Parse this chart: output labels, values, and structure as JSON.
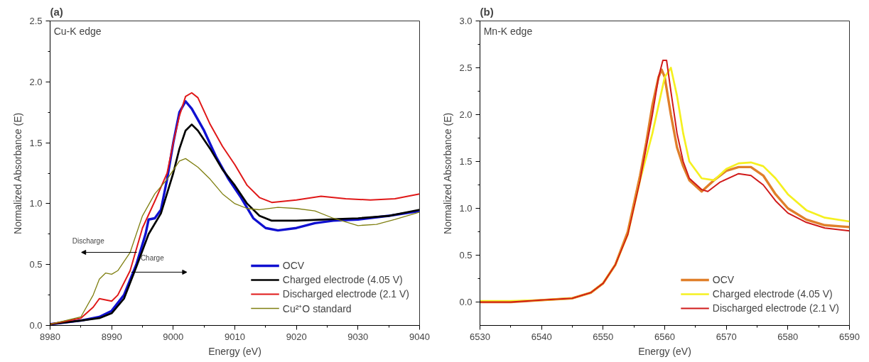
{
  "chart_data": [
    {
      "type": "line",
      "title": "(a)",
      "xlabel": "Energy (eV)",
      "ylabel": "Normalized Absorbance (E)",
      "annotations": [
        "Cu-K edge",
        "Discharge",
        "Charge"
      ],
      "xlim": [
        8980,
        9040
      ],
      "xticks": [
        8980,
        8990,
        9000,
        9010,
        9020,
        9030,
        9040
      ],
      "ylim": [
        0,
        2.5
      ],
      "yticks": [
        {
          "value": 0,
          "label": "0.0"
        },
        0.5,
        {
          "value": 1,
          "label": "1.0"
        },
        1.5,
        {
          "value": 2,
          "label": "2.0"
        },
        2.5
      ],
      "grid": false,
      "legend": "bottom right",
      "line_style": "solid",
      "marker": "none",
      "series": [
        {
          "name": "OCV",
          "color": "#1010d0",
          "x": [
            8980,
            8985,
            8988,
            8990,
            8992,
            8994,
            8995.5,
            8996,
            8997,
            8998,
            8999,
            9000,
            9001,
            9002,
            9003,
            9005,
            9007,
            9009,
            9011,
            9013,
            9015,
            9017,
            9020,
            9023,
            9026,
            9030,
            9035,
            9040
          ],
          "values": [
            0.01,
            0.04,
            0.07,
            0.12,
            0.25,
            0.5,
            0.75,
            0.87,
            0.88,
            0.95,
            1.2,
            1.5,
            1.75,
            1.84,
            1.78,
            1.6,
            1.38,
            1.2,
            1.05,
            0.88,
            0.8,
            0.78,
            0.8,
            0.84,
            0.86,
            0.87,
            0.9,
            0.94
          ]
        },
        {
          "name": "Charged electrode (4.05 V)",
          "color": "#000000",
          "x": [
            8980,
            8985,
            8988,
            8990,
            8992,
            8994,
            8996,
            8998,
            9000,
            9001,
            9002,
            9003,
            9004,
            9006,
            9008,
            9010,
            9012,
            9014,
            9016,
            9020,
            9025,
            9030,
            9035,
            9040
          ],
          "values": [
            0.01,
            0.04,
            0.06,
            0.1,
            0.22,
            0.48,
            0.75,
            0.92,
            1.25,
            1.45,
            1.6,
            1.65,
            1.6,
            1.45,
            1.28,
            1.15,
            1.0,
            0.9,
            0.86,
            0.86,
            0.87,
            0.88,
            0.9,
            0.95
          ]
        },
        {
          "name": "Discharged electrode (2.1 V)",
          "color": "#e01818",
          "x": [
            8980,
            8985,
            8987,
            8988,
            8989,
            8990,
            8991,
            8993,
            8995,
            8997,
            8999,
            9000,
            9001,
            9002,
            9003,
            9004,
            9006,
            9008,
            9010,
            9012,
            9014,
            9016,
            9020,
            9024,
            9028,
            9032,
            9036,
            9040
          ],
          "values": [
            0.01,
            0.06,
            0.15,
            0.22,
            0.21,
            0.2,
            0.25,
            0.45,
            0.8,
            1.02,
            1.25,
            1.5,
            1.72,
            1.88,
            1.91,
            1.87,
            1.65,
            1.47,
            1.32,
            1.15,
            1.05,
            1.01,
            1.03,
            1.06,
            1.04,
            1.03,
            1.04,
            1.08
          ]
        },
        {
          "name": "Cu²⁺O standard",
          "color": "#7f7f10",
          "x": [
            8980,
            8985,
            8987,
            8988,
            8989,
            8990,
            8991,
            8993,
            8995,
            8997,
            8999,
            9001,
            9002,
            9004,
            9006,
            9008,
            9010,
            9012,
            9014,
            9017,
            9020,
            9023,
            9026,
            9030,
            9033,
            9036,
            9040
          ],
          "values": [
            0.01,
            0.07,
            0.25,
            0.38,
            0.43,
            0.42,
            0.45,
            0.6,
            0.9,
            1.08,
            1.2,
            1.35,
            1.37,
            1.3,
            1.2,
            1.08,
            1.0,
            0.96,
            0.95,
            0.97,
            0.96,
            0.94,
            0.88,
            0.82,
            0.83,
            0.87,
            0.93
          ]
        }
      ]
    },
    {
      "type": "line",
      "title": "(b)",
      "xlabel": "Energy (eV)",
      "ylabel": "Normalized Absorbance (E)",
      "annotations": [
        "Mn-K edge"
      ],
      "xlim": [
        6530,
        6590
      ],
      "xticks": [
        6530,
        6540,
        6550,
        6560,
        6570,
        6580,
        6590
      ],
      "ylim": [
        -0.25,
        3.0
      ],
      "yticks": [
        {
          "value": 0,
          "label": "0.0"
        },
        0.5,
        {
          "value": 1,
          "label": "1.0"
        },
        1.5,
        {
          "value": 2,
          "label": "2.0"
        },
        2.5,
        {
          "value": 3,
          "label": "3.0"
        }
      ],
      "grid": false,
      "legend": "bottom right",
      "line_style": "solid",
      "marker": "none",
      "series": [
        {
          "name": "OCV",
          "color": "#e07f2a",
          "x": [
            6530,
            6535,
            6540,
            6545,
            6548,
            6550,
            6552,
            6554,
            6556,
            6557,
            6558,
            6559,
            6559.5,
            6560,
            6561,
            6562,
            6563,
            6564,
            6566,
            6568,
            6570,
            6572,
            6574,
            6576,
            6578,
            6580,
            6583,
            6586,
            6590
          ],
          "values": [
            0.0,
            0.0,
            0.02,
            0.04,
            0.1,
            0.2,
            0.4,
            0.75,
            1.35,
            1.7,
            2.1,
            2.4,
            2.48,
            2.4,
            2.0,
            1.65,
            1.45,
            1.3,
            1.18,
            1.3,
            1.4,
            1.44,
            1.44,
            1.35,
            1.15,
            1.0,
            0.88,
            0.82,
            0.8
          ]
        },
        {
          "name": "Charged electrode (4.05 V)",
          "color": "#f5f020",
          "x": [
            6530,
            6535,
            6540,
            6545,
            6548,
            6550,
            6552,
            6554,
            6556,
            6558,
            6560,
            6561,
            6562,
            6563,
            6564,
            6566,
            6568,
            6570,
            6572,
            6574,
            6576,
            6578,
            6580,
            6583,
            6586,
            6590
          ],
          "values": [
            0.01,
            0.01,
            0.02,
            0.04,
            0.1,
            0.2,
            0.4,
            0.72,
            1.3,
            1.8,
            2.4,
            2.5,
            2.2,
            1.8,
            1.5,
            1.32,
            1.3,
            1.42,
            1.48,
            1.49,
            1.45,
            1.32,
            1.15,
            0.98,
            0.9,
            0.86
          ]
        },
        {
          "name": "Discharged electrode (2.1 V)",
          "color": "#d01a1a",
          "x": [
            6530,
            6535,
            6540,
            6545,
            6548,
            6550,
            6552,
            6554,
            6556,
            6558,
            6559,
            6559.7,
            6560.3,
            6561,
            6562,
            6563,
            6564,
            6566,
            6567,
            6569,
            6572,
            6574,
            6576,
            6578,
            6580,
            6583,
            6586,
            6590
          ],
          "values": [
            0.0,
            0.0,
            0.02,
            0.04,
            0.1,
            0.2,
            0.4,
            0.72,
            1.3,
            2.0,
            2.4,
            2.58,
            2.58,
            2.25,
            1.8,
            1.5,
            1.32,
            1.2,
            1.18,
            1.28,
            1.37,
            1.35,
            1.25,
            1.08,
            0.95,
            0.85,
            0.79,
            0.76
          ]
        }
      ]
    }
  ]
}
